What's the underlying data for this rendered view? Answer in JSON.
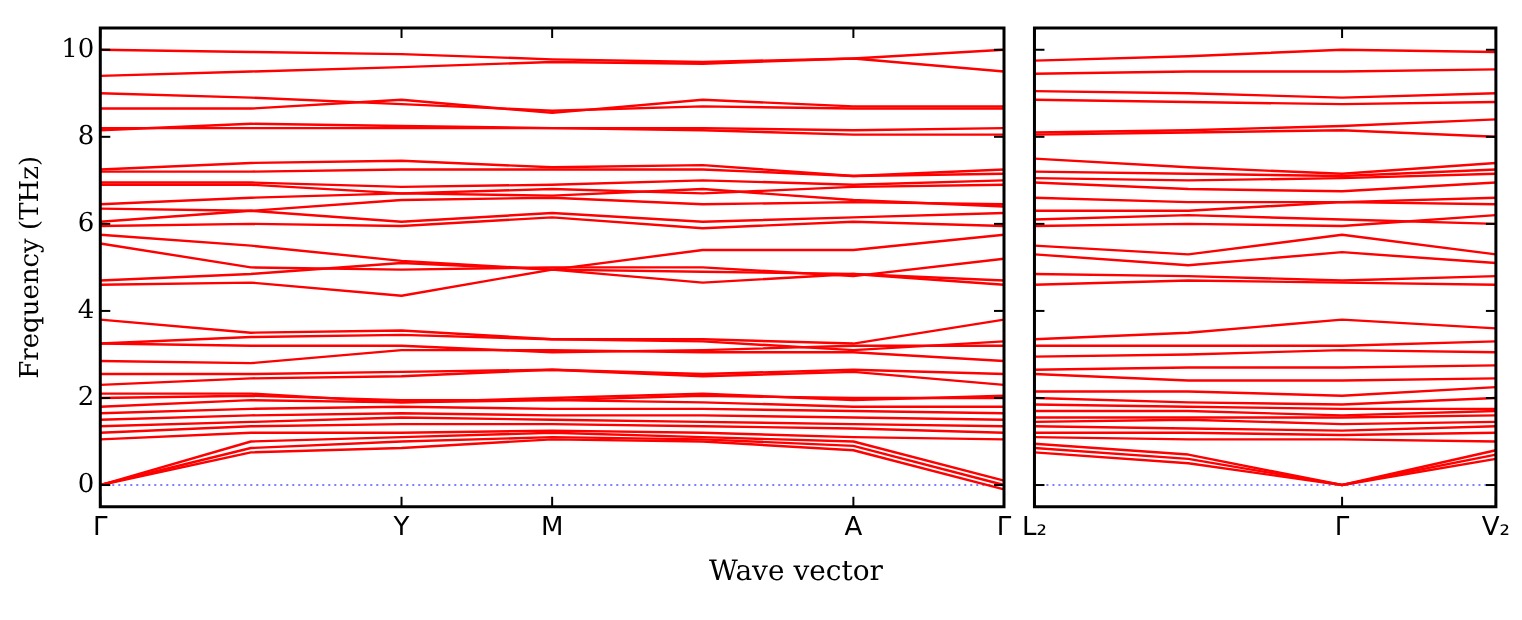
{
  "chart_data": [
    {
      "type": "line",
      "xlabel": "Wave vector",
      "ylabel": "Frequency (THz)",
      "categories": [
        "Γ",
        null,
        "Y",
        "M",
        null,
        "A",
        "Γ"
      ],
      "ylim": [
        -0.5,
        10.5
      ],
      "yticks": [
        0,
        2,
        4,
        6,
        8,
        10
      ],
      "grid": false,
      "legend": false,
      "ref_lines": [
        {
          "axis": "y",
          "value": 0,
          "color": "#8080ff",
          "line_style": "dotted"
        }
      ],
      "series": [
        {
          "color": "#ff0000",
          "values": [
            0,
            0.75,
            0.85,
            1.05,
            1.0,
            0.8,
            -0.1
          ]
        },
        {
          "color": "#ff0000",
          "values": [
            0,
            0.85,
            1.0,
            1.1,
            1.05,
            0.9,
            0
          ]
        },
        {
          "color": "#ff0000",
          "values": [
            0,
            1.0,
            1.1,
            1.2,
            1.1,
            1.0,
            0.1
          ]
        },
        {
          "color": "#ff0000",
          "values": [
            1.05,
            1.2,
            1.2,
            1.25,
            1.2,
            1.1,
            1.05
          ]
        },
        {
          "color": "#ff0000",
          "values": [
            1.2,
            1.35,
            1.4,
            1.4,
            1.35,
            1.3,
            1.2
          ]
        },
        {
          "color": "#ff0000",
          "values": [
            1.35,
            1.45,
            1.55,
            1.5,
            1.45,
            1.4,
            1.35
          ]
        },
        {
          "color": "#ff0000",
          "values": [
            1.5,
            1.6,
            1.65,
            1.6,
            1.6,
            1.55,
            1.5
          ]
        },
        {
          "color": "#ff0000",
          "values": [
            1.65,
            1.75,
            1.8,
            1.75,
            1.75,
            1.7,
            1.65
          ]
        },
        {
          "color": "#ff0000",
          "values": [
            1.8,
            1.95,
            1.9,
            1.95,
            1.9,
            1.8,
            1.8
          ]
        },
        {
          "color": "#ff0000",
          "values": [
            2.0,
            2.05,
            1.95,
            1.95,
            2.05,
            2.0,
            2.0
          ]
        },
        {
          "color": "#ff0000",
          "values": [
            2.1,
            2.1,
            1.9,
            2.0,
            2.1,
            1.95,
            2.05
          ]
        },
        {
          "color": "#ff0000",
          "values": [
            2.3,
            2.45,
            2.5,
            2.65,
            2.5,
            2.6,
            2.3
          ]
        },
        {
          "color": "#ff0000",
          "values": [
            2.55,
            2.55,
            2.6,
            2.65,
            2.55,
            2.65,
            2.55
          ]
        },
        {
          "color": "#ff0000",
          "values": [
            2.85,
            2.8,
            3.1,
            3.1,
            3.05,
            3.05,
            2.85
          ]
        },
        {
          "color": "#ff0000",
          "values": [
            3.25,
            3.2,
            3.2,
            3.05,
            3.1,
            3.2,
            3.2
          ]
        },
        {
          "color": "#ff0000",
          "values": [
            3.25,
            3.4,
            3.45,
            3.35,
            3.3,
            3.1,
            3.3
          ]
        },
        {
          "color": "#ff0000",
          "values": [
            3.8,
            3.5,
            3.55,
            3.35,
            3.35,
            3.25,
            3.8
          ]
        },
        {
          "color": "#ff0000",
          "values": [
            4.6,
            4.65,
            4.35,
            4.95,
            4.65,
            4.85,
            4.6
          ]
        },
        {
          "color": "#ff0000",
          "values": [
            4.7,
            4.85,
            5.1,
            4.95,
            4.9,
            4.85,
            4.7
          ]
        },
        {
          "color": "#ff0000",
          "values": [
            5.55,
            5.0,
            4.95,
            5.0,
            5.0,
            4.8,
            5.2
          ]
        },
        {
          "color": "#ff0000",
          "values": [
            5.75,
            5.5,
            5.15,
            4.95,
            5.4,
            5.4,
            5.75
          ]
        },
        {
          "color": "#ff0000",
          "values": [
            5.95,
            6.0,
            5.95,
            6.15,
            5.9,
            6.05,
            5.95
          ]
        },
        {
          "color": "#ff0000",
          "values": [
            6.05,
            6.3,
            6.05,
            6.25,
            6.05,
            6.15,
            6.25
          ]
        },
        {
          "color": "#ff0000",
          "values": [
            6.35,
            6.3,
            6.55,
            6.6,
            6.45,
            6.5,
            6.45
          ]
        },
        {
          "color": "#ff0000",
          "values": [
            6.45,
            6.6,
            6.7,
            6.65,
            6.8,
            6.55,
            6.4
          ]
        },
        {
          "color": "#ff0000",
          "values": [
            6.9,
            6.9,
            6.7,
            6.8,
            6.7,
            6.85,
            6.9
          ]
        },
        {
          "color": "#ff0000",
          "values": [
            6.95,
            6.95,
            6.85,
            6.9,
            7.0,
            6.9,
            7.0
          ]
        },
        {
          "color": "#ff0000",
          "values": [
            7.2,
            7.2,
            7.25,
            7.25,
            7.25,
            7.1,
            7.15
          ]
        },
        {
          "color": "#ff0000",
          "values": [
            7.25,
            7.4,
            7.45,
            7.3,
            7.35,
            7.1,
            7.25
          ]
        },
        {
          "color": "#ff0000",
          "values": [
            8.15,
            8.3,
            8.25,
            8.2,
            8.15,
            8.05,
            8.05
          ]
        },
        {
          "color": "#ff0000",
          "values": [
            8.2,
            8.2,
            8.2,
            8.2,
            8.2,
            8.15,
            8.2
          ]
        },
        {
          "color": "#ff0000",
          "values": [
            8.65,
            8.65,
            8.85,
            8.55,
            8.85,
            8.7,
            8.7
          ]
        },
        {
          "color": "#ff0000",
          "values": [
            9.0,
            8.9,
            8.75,
            8.6,
            8.7,
            8.65,
            8.65
          ]
        },
        {
          "color": "#ff0000",
          "values": [
            9.4,
            9.5,
            9.6,
            9.72,
            9.68,
            9.8,
            9.5
          ]
        },
        {
          "color": "#ff0000",
          "values": [
            10.0,
            9.95,
            9.9,
            9.78,
            9.72,
            9.8,
            10.0
          ]
        }
      ]
    },
    {
      "type": "line",
      "categories": [
        "L₂",
        null,
        "Γ",
        "V₂"
      ],
      "ylim": [
        -0.5,
        10.5
      ],
      "yticks": [
        0,
        2,
        4,
        6,
        8,
        10
      ],
      "tick_labels": "x",
      "grid": false,
      "legend": false,
      "ref_lines": [
        {
          "axis": "y",
          "value": 0,
          "color": "#8080ff",
          "line_style": "dotted"
        }
      ],
      "series": [
        {
          "color": "#ff0000",
          "values": [
            0.75,
            0.5,
            0,
            0.8
          ]
        },
        {
          "color": "#ff0000",
          "values": [
            0.85,
            0.6,
            0,
            0.7
          ]
        },
        {
          "color": "#ff0000",
          "values": [
            0.95,
            0.7,
            0,
            0.6
          ]
        },
        {
          "color": "#ff0000",
          "values": [
            1.1,
            1.05,
            1.05,
            1.0
          ]
        },
        {
          "color": "#ff0000",
          "values": [
            1.2,
            1.2,
            1.15,
            1.2
          ]
        },
        {
          "color": "#ff0000",
          "values": [
            1.35,
            1.3,
            1.25,
            1.35
          ]
        },
        {
          "color": "#ff0000",
          "values": [
            1.45,
            1.5,
            1.4,
            1.45
          ]
        },
        {
          "color": "#ff0000",
          "values": [
            1.55,
            1.55,
            1.55,
            1.6
          ]
        },
        {
          "color": "#ff0000",
          "values": [
            1.7,
            1.7,
            1.6,
            1.7
          ]
        },
        {
          "color": "#ff0000",
          "values": [
            1.85,
            1.8,
            1.75,
            1.75
          ]
        },
        {
          "color": "#ff0000",
          "values": [
            2.0,
            1.9,
            1.85,
            2.0
          ]
        },
        {
          "color": "#ff0000",
          "values": [
            2.15,
            2.15,
            2.05,
            2.25
          ]
        },
        {
          "color": "#ff0000",
          "values": [
            2.55,
            2.4,
            2.4,
            2.45
          ]
        },
        {
          "color": "#ff0000",
          "values": [
            2.65,
            2.7,
            2.7,
            2.75
          ]
        },
        {
          "color": "#ff0000",
          "values": [
            2.95,
            3.0,
            3.1,
            3.05
          ]
        },
        {
          "color": "#ff0000",
          "values": [
            3.2,
            3.2,
            3.2,
            3.3
          ]
        },
        {
          "color": "#ff0000",
          "values": [
            3.35,
            3.5,
            3.8,
            3.6
          ]
        },
        {
          "color": "#ff0000",
          "values": [
            4.6,
            4.7,
            4.65,
            4.6
          ]
        },
        {
          "color": "#ff0000",
          "values": [
            4.85,
            4.8,
            4.7,
            4.8
          ]
        },
        {
          "color": "#ff0000",
          "values": [
            5.3,
            5.05,
            5.35,
            5.1
          ]
        },
        {
          "color": "#ff0000",
          "values": [
            5.5,
            5.3,
            5.75,
            5.3
          ]
        },
        {
          "color": "#ff0000",
          "values": [
            5.95,
            6.0,
            5.95,
            6.2
          ]
        },
        {
          "color": "#ff0000",
          "values": [
            6.1,
            6.2,
            6.1,
            6.0
          ]
        },
        {
          "color": "#ff0000",
          "values": [
            6.3,
            6.3,
            6.5,
            6.45
          ]
        },
        {
          "color": "#ff0000",
          "values": [
            6.6,
            6.5,
            6.5,
            6.6
          ]
        },
        {
          "color": "#ff0000",
          "values": [
            6.95,
            6.8,
            6.75,
            6.95
          ]
        },
        {
          "color": "#ff0000",
          "values": [
            7.05,
            7.0,
            7.05,
            7.15
          ]
        },
        {
          "color": "#ff0000",
          "values": [
            7.2,
            7.15,
            7.1,
            7.25
          ]
        },
        {
          "color": "#ff0000",
          "values": [
            7.5,
            7.3,
            7.15,
            7.4
          ]
        },
        {
          "color": "#ff0000",
          "values": [
            8.05,
            8.1,
            8.15,
            8.0
          ]
        },
        {
          "color": "#ff0000",
          "values": [
            8.1,
            8.15,
            8.25,
            8.4
          ]
        },
        {
          "color": "#ff0000",
          "values": [
            8.85,
            8.8,
            8.75,
            8.8
          ]
        },
        {
          "color": "#ff0000",
          "values": [
            9.05,
            9.0,
            8.9,
            9.0
          ]
        },
        {
          "color": "#ff0000",
          "values": [
            9.45,
            9.5,
            9.5,
            9.55
          ]
        },
        {
          "color": "#ff0000",
          "values": [
            9.75,
            9.85,
            10.0,
            9.95
          ]
        }
      ]
    }
  ]
}
